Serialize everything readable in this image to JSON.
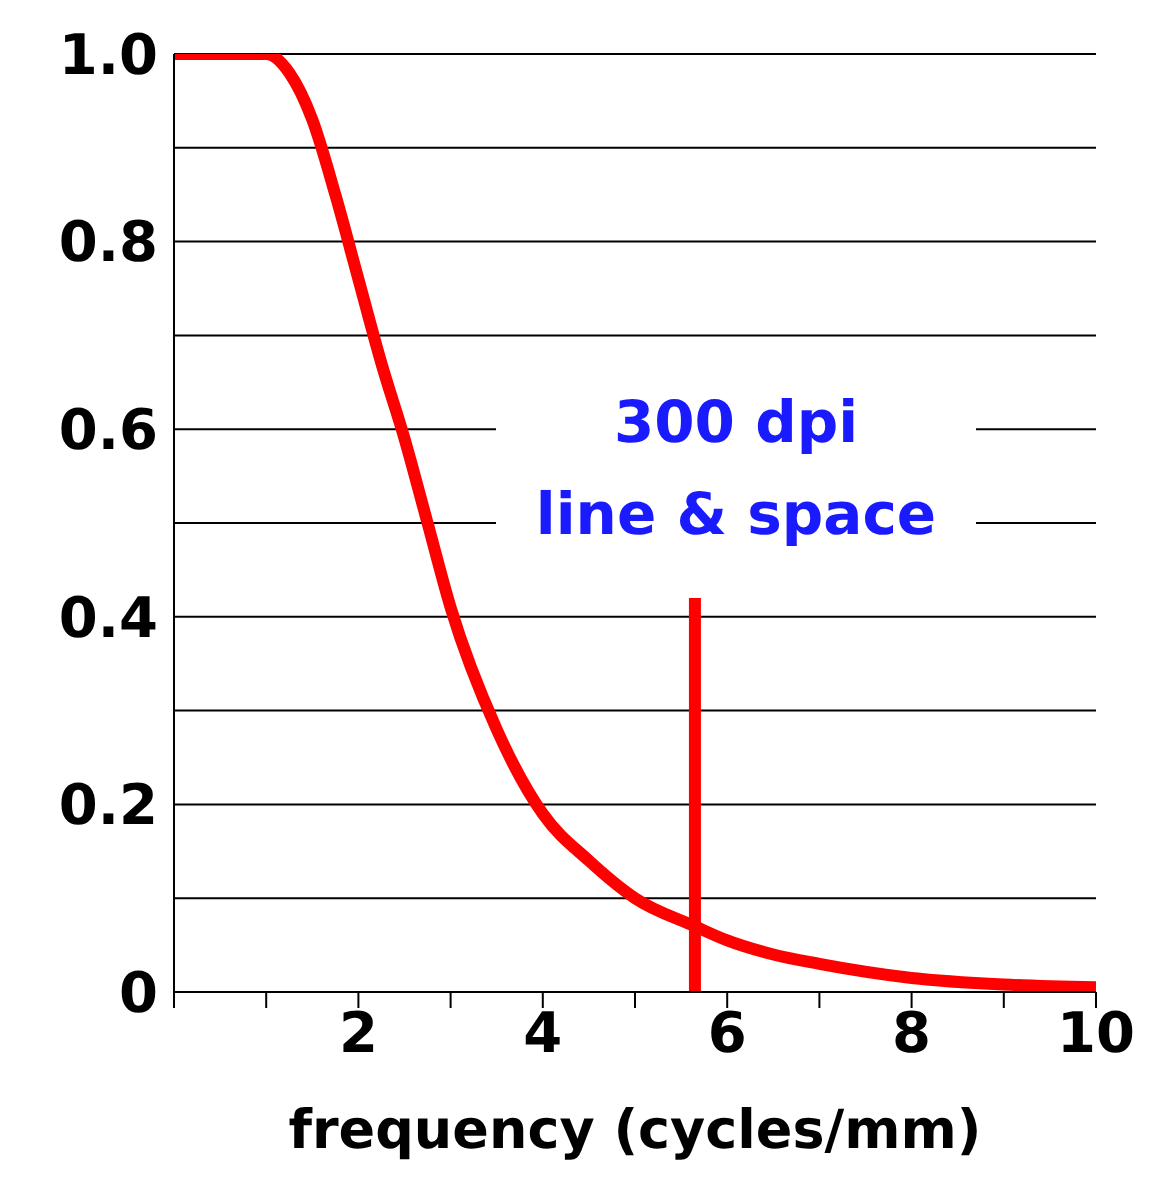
{
  "chart_data": {
    "type": "line",
    "xlabel": "frequency (cycles/mm)",
    "series": [
      {
        "color": "#ff0000",
        "x": [
          0,
          0.5,
          1,
          1.25,
          1.5,
          1.75,
          2,
          2.25,
          2.5,
          2.75,
          3,
          3.5,
          4,
          4.5,
          5,
          5.65,
          6,
          6.5,
          7,
          8,
          9,
          10
        ],
        "values": [
          1,
          1,
          1,
          0.98,
          0.93,
          0.85,
          0.76,
          0.67,
          0.59,
          0.5,
          0.41,
          0.28,
          0.19,
          0.14,
          0.1,
          0.07,
          0.055,
          0.04,
          0.03,
          0.015,
          0.008,
          0.005
        ]
      },
      {
        "type": "line",
        "color": "#ff0000",
        "x": [
          5.65,
          5.65
        ],
        "values": [
          0,
          0.42
        ]
      }
    ],
    "annotations": [
      "300 dpi\nline & space"
    ],
    "xlim": [
      0,
      10
    ],
    "ylim": [
      0,
      1
    ],
    "xticks": [
      {
        "value": 0,
        "label": null
      },
      {
        "value": 1,
        "label": null
      },
      2,
      {
        "value": 3,
        "label": null
      },
      4,
      {
        "value": 5,
        "label": null
      },
      6,
      {
        "value": 7,
        "label": null
      },
      8,
      {
        "value": 9,
        "label": null
      },
      10
    ],
    "yticks": [
      {
        "value": 0,
        "label": "0"
      },
      {
        "value": 0.1,
        "label": null
      },
      0.2,
      {
        "value": 0.3,
        "label": null
      },
      0.4,
      {
        "value": 0.5,
        "label": null
      },
      0.6,
      {
        "value": 0.7,
        "label": null
      },
      0.8,
      {
        "value": 0.9,
        "label": null
      },
      {
        "value": 1,
        "label": "1.0"
      }
    ],
    "grid": "y",
    "marker": "none",
    "line_style": "solid"
  }
}
